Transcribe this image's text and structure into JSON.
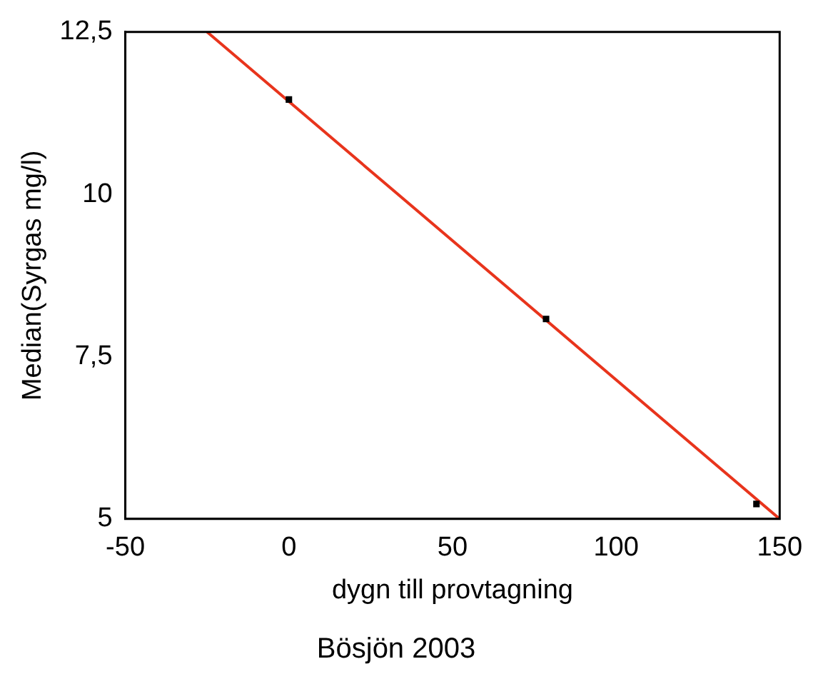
{
  "chart_data": {
    "type": "scatter",
    "title": "Bösjön 2003",
    "xlabel": "dygn till provtagning",
    "ylabel": "Median(Syrgas mg/l)",
    "series": [
      {
        "type": "scatter",
        "color": "#000000",
        "marker": "square",
        "x": [
          0,
          78.6,
          142.9
        ],
        "values": [
          11.46,
          8.08,
          5.23
        ]
      },
      {
        "type": "line",
        "color": "#e8341c",
        "x": [
          -25,
          150
        ],
        "values": [
          12.5,
          5
        ]
      }
    ],
    "xlim": [
      -50,
      150
    ],
    "xticks": [
      -50,
      0,
      50,
      100,
      150
    ],
    "ylim": [
      5,
      12.5
    ],
    "yticks": [
      5,
      {
        "value": 7.5,
        "label": "7,5"
      },
      10,
      {
        "value": 12.5,
        "label": "12,5"
      }
    ],
    "grid": false,
    "legend": false
  }
}
